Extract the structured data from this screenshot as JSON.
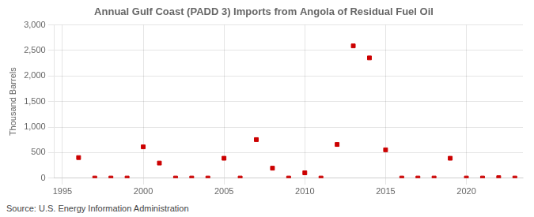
{
  "chart_data": {
    "type": "scatter",
    "title": "Annual Gulf Coast (PADD 3) Imports from Angola of Residual Fuel Oil",
    "ylabel": "Thousand Barrels",
    "annotations": [
      "Source: U.S. Energy Information Administration"
    ],
    "x": [
      1996,
      1997,
      1998,
      1999,
      2000,
      2001,
      2002,
      2003,
      2004,
      2005,
      2006,
      2007,
      2008,
      2009,
      2010,
      2011,
      2012,
      2013,
      2014,
      2015,
      2016,
      2017,
      2018,
      2019,
      2020,
      2021,
      2022,
      2023
    ],
    "values": [
      403,
      3,
      3,
      3,
      613,
      296,
      3,
      3,
      3,
      390,
      3,
      755,
      196,
      3,
      105,
      3,
      660,
      2590,
      2355,
      555,
      3,
      3,
      3,
      390,
      3,
      3,
      10,
      3
    ],
    "color": "#cc0000",
    "marker": "square",
    "xlim": [
      1994.5,
      2023.5
    ],
    "xticks": [
      1995,
      2000,
      2005,
      2010,
      2015,
      2020
    ],
    "ylim": [
      0,
      3000
    ],
    "yticks": [
      0,
      500,
      {
        "value": 1000,
        "label": "1,000"
      },
      {
        "value": 1500,
        "label": "1,500"
      },
      {
        "value": 2000,
        "label": "2,000"
      },
      {
        "value": 2500,
        "label": "2,500"
      },
      {
        "value": 3000,
        "label": "3,000"
      }
    ],
    "grid": true
  }
}
